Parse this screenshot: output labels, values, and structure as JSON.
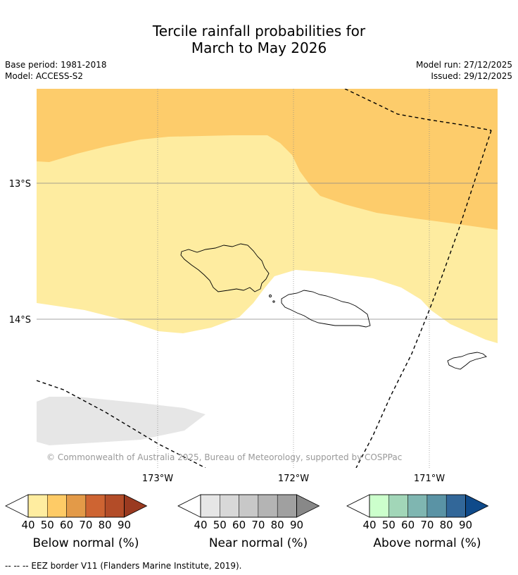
{
  "title": {
    "line1": "Tercile rainfall probabilities for",
    "line2": "March to May 2026"
  },
  "meta": {
    "base_period": "Base period: 1981-2018",
    "model": "Model: ACCESS-S2",
    "model_run": "Model run: 27/12/2025",
    "issued": "Issued: 29/12/2025"
  },
  "map": {
    "lat_labels": [
      "13°S",
      "14°S"
    ],
    "lon_labels": [
      "173°W",
      "172°W",
      "171°W"
    ],
    "copyright": "© Commonwealth of Australia 2025, Bureau of Meteorology, supported by COSPPac",
    "colors": {
      "below_50_60": "#fdcc6b",
      "below_40_50": "#feeca0",
      "near_40_50": "#e6e6e6",
      "coast": "#000000",
      "grid": "#888888"
    }
  },
  "colorbars": [
    {
      "name": "below",
      "label": "Below normal (%)",
      "ticks": [
        "40",
        "50",
        "60",
        "70",
        "80",
        "90"
      ],
      "colors": [
        "#ffeda0",
        "#fecb66",
        "#e39a48",
        "#ce6432",
        "#b34c28",
        "#9a3a20"
      ],
      "under_color": "#ffffff"
    },
    {
      "name": "near",
      "label": "Near normal (%)",
      "ticks": [
        "40",
        "50",
        "60",
        "70",
        "80",
        "90"
      ],
      "colors": [
        "#e6e6e6",
        "#d8d8d8",
        "#c8c8c8",
        "#b4b4b4",
        "#a0a0a0",
        "#888888"
      ],
      "under_color": "#ffffff"
    },
    {
      "name": "above",
      "label": "Above normal (%)",
      "ticks": [
        "40",
        "50",
        "60",
        "70",
        "80",
        "90"
      ],
      "colors": [
        "#ccffcc",
        "#a2d6b8",
        "#7fb6b1",
        "#5a93a5",
        "#326799",
        "#0f4a8a"
      ],
      "under_color": "#ffffff"
    }
  ],
  "footer": "--  --  -- EEZ border V11 (Flanders Marine Institute, 2019)."
}
